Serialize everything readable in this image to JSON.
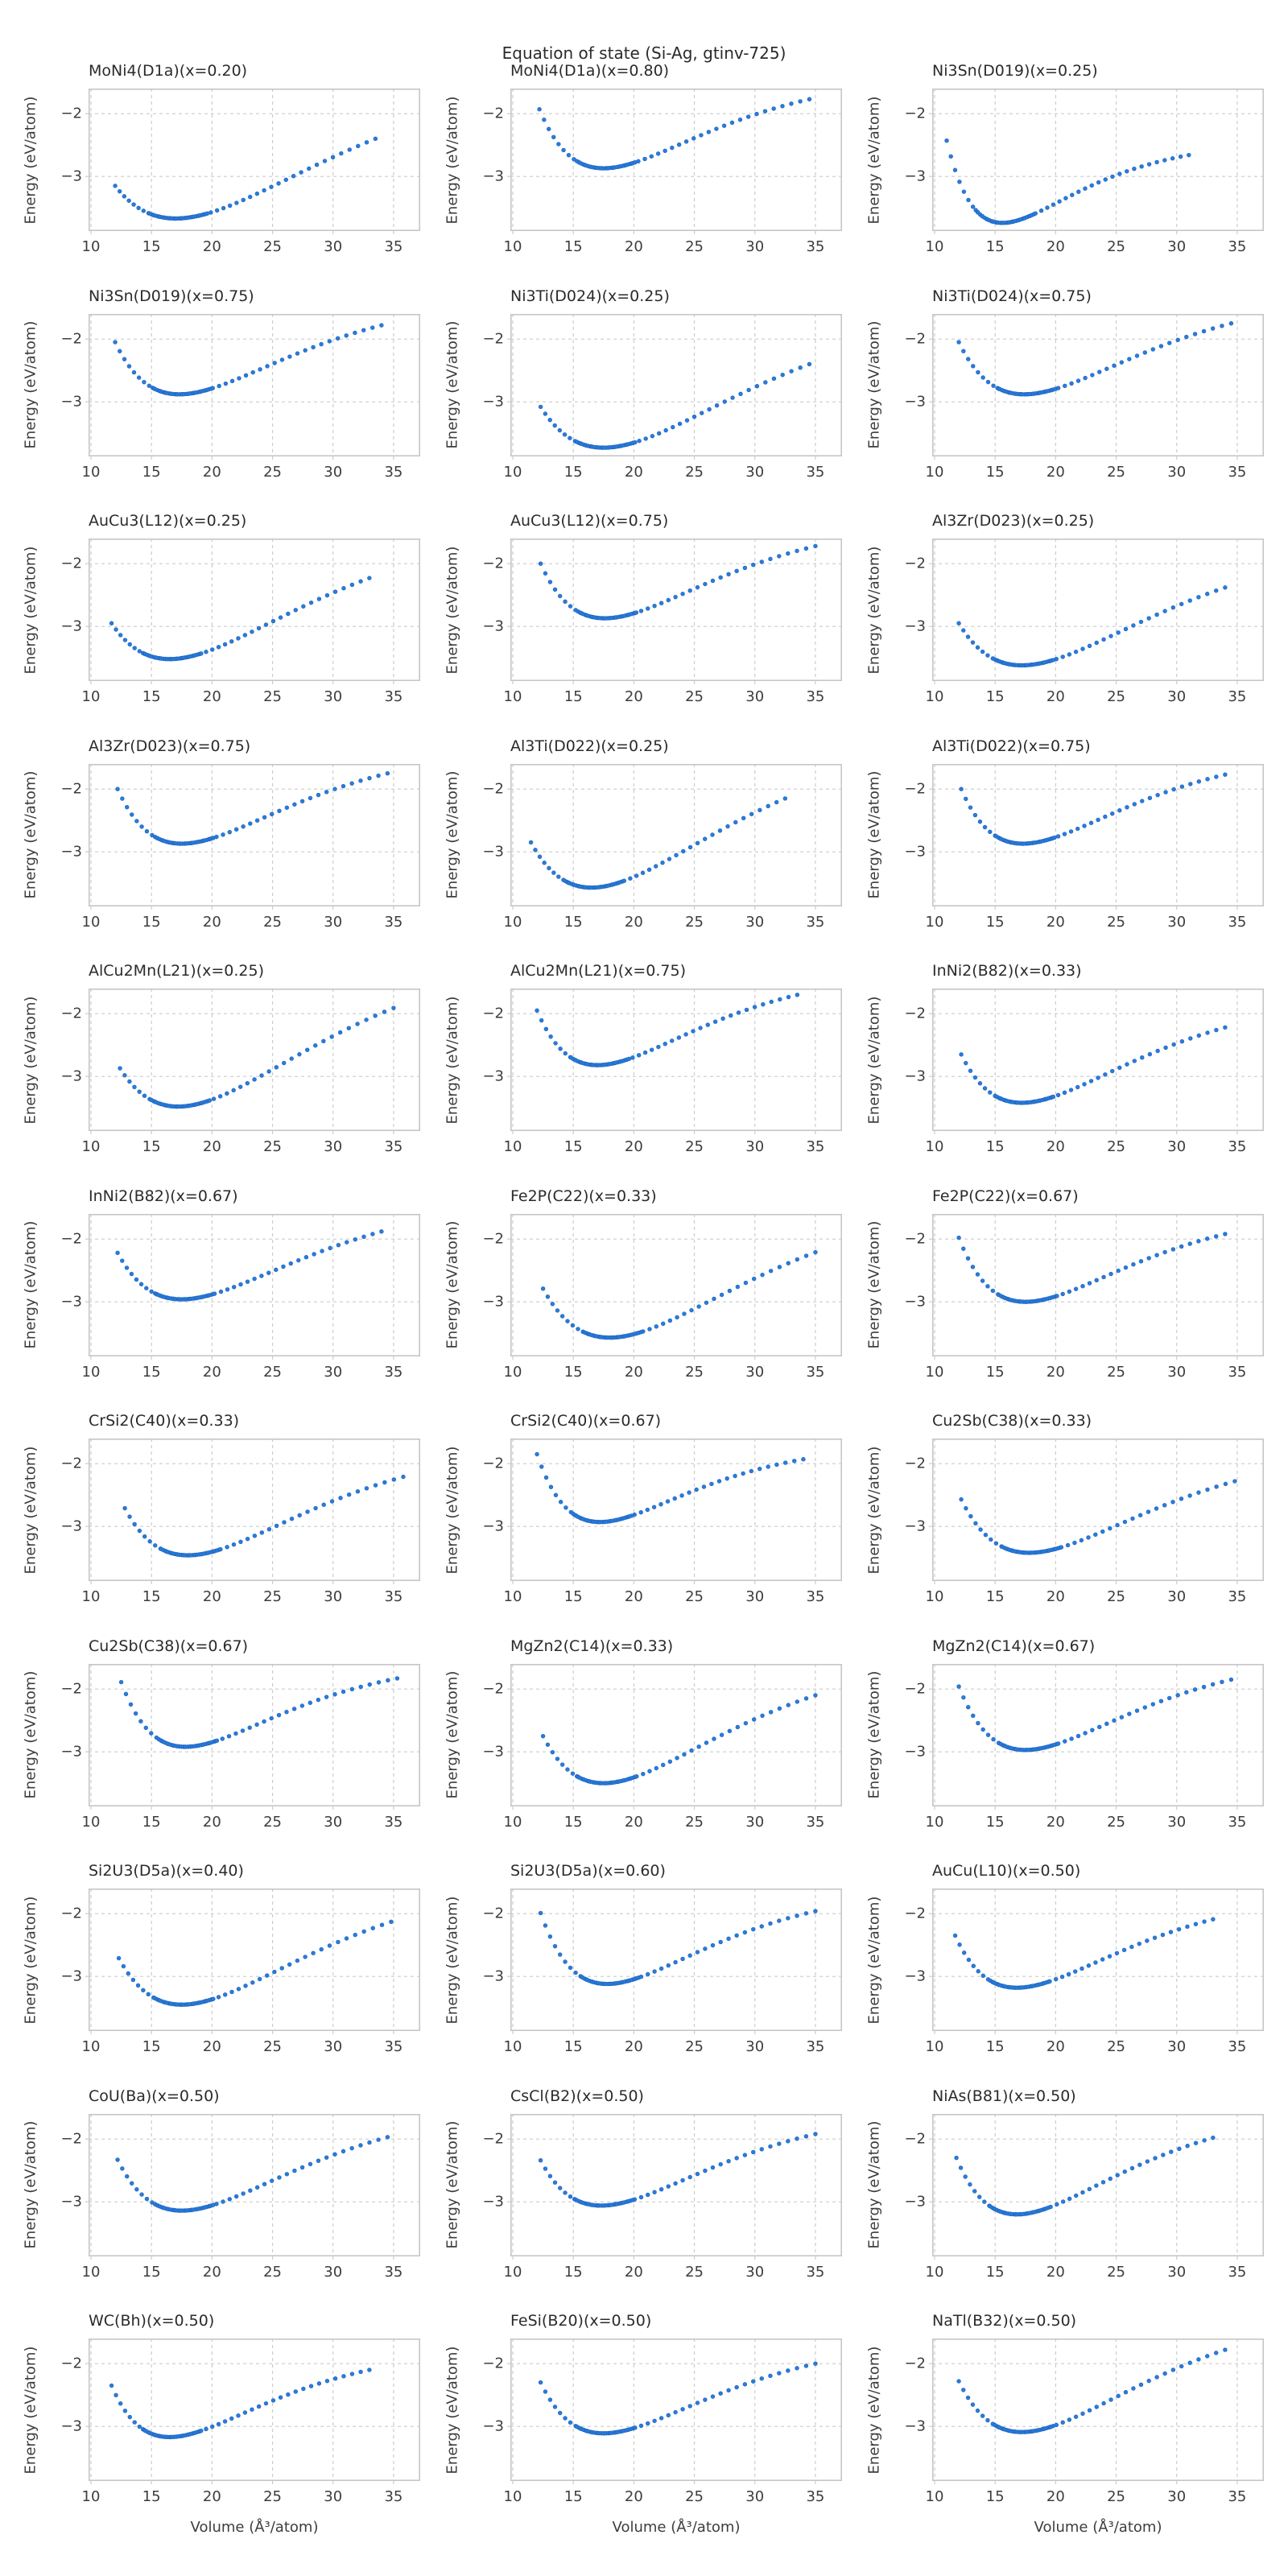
{
  "figure": {
    "suptitle": "Equation of state (Si-Ag, gtinv-725)",
    "colors": {
      "marker": "#2b7cd9",
      "marker_edge": "#1b63c0",
      "grid": "#cccccc",
      "axes_border": "#c6c6c6",
      "title_text": "#2b2b2b",
      "tick_text": "#3d3d3d"
    }
  },
  "chart_data": {
    "type": "scatter",
    "marker": "circle-dot",
    "grid": true,
    "grid_style": "dashed",
    "legend": false,
    "layout": {
      "rows": 11,
      "cols": 3
    },
    "xlabel": "Volume (Å³/atom)",
    "ylabel": "Energy (eV/atom)",
    "xlim": [
      9.8,
      37.2
    ],
    "ylim": [
      -3.87,
      -1.6
    ],
    "xticks": [
      10,
      15,
      20,
      25,
      30,
      35
    ],
    "yticks": [
      -2,
      -3
    ],
    "series_note": "Each subplot: energy-volume scatter curve; eos gives start point (v_start,e_start), minimum (v_min,e_min) and end point (v_end,e_end) in (Å³/atom, eV/atom), read from the plot.",
    "subplots": [
      {
        "title": "MoNi4(D1a)(x=0.20)",
        "eos": {
          "v_start": 12.0,
          "e_start": -3.15,
          "v_min": 17.0,
          "e_min": -3.67,
          "v_end": 33.5,
          "e_end": -2.4
        }
      },
      {
        "title": "MoNi4(D1a)(x=0.80)",
        "eos": {
          "v_start": 12.2,
          "e_start": -1.93,
          "v_min": 17.5,
          "e_min": -2.87,
          "v_end": 34.5,
          "e_end": -1.77
        }
      },
      {
        "title": "Ni3Sn(D019)(x=0.25)",
        "eos": {
          "v_start": 11.0,
          "e_start": -2.43,
          "v_min": 15.6,
          "e_min": -3.74,
          "v_end": 31.0,
          "e_end": -2.66
        }
      },
      {
        "title": "Ni3Sn(D019)(x=0.75)",
        "eos": {
          "v_start": 12.0,
          "e_start": -2.05,
          "v_min": 17.3,
          "e_min": -2.88,
          "v_end": 34.0,
          "e_end": -1.78
        }
      },
      {
        "title": "Ni3Ti(D024)(x=0.25)",
        "eos": {
          "v_start": 12.3,
          "e_start": -3.08,
          "v_min": 17.5,
          "e_min": -3.73,
          "v_end": 34.5,
          "e_end": -2.4
        }
      },
      {
        "title": "Ni3Ti(D024)(x=0.75)",
        "eos": {
          "v_start": 12.0,
          "e_start": -2.05,
          "v_min": 17.4,
          "e_min": -2.88,
          "v_end": 34.5,
          "e_end": -1.75
        }
      },
      {
        "title": "AuCu3(L12)(x=0.25)",
        "eos": {
          "v_start": 11.7,
          "e_start": -2.95,
          "v_min": 16.5,
          "e_min": -3.52,
          "v_end": 33.0,
          "e_end": -2.23
        }
      },
      {
        "title": "AuCu3(L12)(x=0.75)",
        "eos": {
          "v_start": 12.3,
          "e_start": -2.0,
          "v_min": 17.6,
          "e_min": -2.87,
          "v_end": 35.0,
          "e_end": -1.72
        }
      },
      {
        "title": "Al3Zr(D023)(x=0.25)",
        "eos": {
          "v_start": 12.0,
          "e_start": -2.95,
          "v_min": 17.2,
          "e_min": -3.62,
          "v_end": 34.0,
          "e_end": -2.38
        }
      },
      {
        "title": "Al3Zr(D023)(x=0.75)",
        "eos": {
          "v_start": 12.2,
          "e_start": -2.0,
          "v_min": 17.5,
          "e_min": -2.87,
          "v_end": 34.5,
          "e_end": -1.75
        }
      },
      {
        "title": "Al3Ti(D022)(x=0.25)",
        "eos": {
          "v_start": 11.5,
          "e_start": -2.85,
          "v_min": 16.5,
          "e_min": -3.57,
          "v_end": 32.5,
          "e_end": -2.15
        }
      },
      {
        "title": "Al3Ti(D022)(x=0.75)",
        "eos": {
          "v_start": 12.2,
          "e_start": -2.0,
          "v_min": 17.3,
          "e_min": -2.87,
          "v_end": 34.0,
          "e_end": -1.77
        }
      },
      {
        "title": "AlCu2Mn(L21)(x=0.25)",
        "eos": {
          "v_start": 12.4,
          "e_start": -2.87,
          "v_min": 17.2,
          "e_min": -3.48,
          "v_end": 35.0,
          "e_end": -1.91
        }
      },
      {
        "title": "AlCu2Mn(L21)(x=0.75)",
        "eos": {
          "v_start": 12.0,
          "e_start": -1.95,
          "v_min": 17.0,
          "e_min": -2.82,
          "v_end": 33.5,
          "e_end": -1.7
        }
      },
      {
        "title": "InNi2(B82)(x=0.33)",
        "eos": {
          "v_start": 12.2,
          "e_start": -2.65,
          "v_min": 17.2,
          "e_min": -3.42,
          "v_end": 34.0,
          "e_end": -2.22
        }
      },
      {
        "title": "InNi2(B82)(x=0.67)",
        "eos": {
          "v_start": 12.2,
          "e_start": -2.22,
          "v_min": 17.5,
          "e_min": -2.96,
          "v_end": 34.0,
          "e_end": -1.88
        }
      },
      {
        "title": "Fe2P(C22)(x=0.33)",
        "eos": {
          "v_start": 12.5,
          "e_start": -2.79,
          "v_min": 18.0,
          "e_min": -3.57,
          "v_end": 35.0,
          "e_end": -2.21
        }
      },
      {
        "title": "Fe2P(C22)(x=0.67)",
        "eos": {
          "v_start": 12.0,
          "e_start": -1.98,
          "v_min": 17.5,
          "e_min": -3.0,
          "v_end": 34.0,
          "e_end": -1.92
        }
      },
      {
        "title": "CrSi2(C40)(x=0.33)",
        "eos": {
          "v_start": 12.8,
          "e_start": -2.71,
          "v_min": 18.0,
          "e_min": -3.46,
          "v_end": 35.8,
          "e_end": -2.21
        }
      },
      {
        "title": "CrSi2(C40)(x=0.67)",
        "eos": {
          "v_start": 12.0,
          "e_start": -1.85,
          "v_min": 17.2,
          "e_min": -2.93,
          "v_end": 34.0,
          "e_end": -1.93
        }
      },
      {
        "title": "Cu2Sb(C38)(x=0.33)",
        "eos": {
          "v_start": 12.2,
          "e_start": -2.57,
          "v_min": 17.8,
          "e_min": -3.42,
          "v_end": 34.8,
          "e_end": -2.28
        }
      },
      {
        "title": "Cu2Sb(C38)(x=0.67)",
        "eos": {
          "v_start": 12.5,
          "e_start": -1.89,
          "v_min": 17.8,
          "e_min": -2.92,
          "v_end": 35.3,
          "e_end": -1.83
        }
      },
      {
        "title": "MgZn2(C14)(x=0.33)",
        "eos": {
          "v_start": 12.5,
          "e_start": -2.75,
          "v_min": 17.5,
          "e_min": -3.5,
          "v_end": 35.0,
          "e_end": -2.1
        }
      },
      {
        "title": "MgZn2(C14)(x=0.67)",
        "eos": {
          "v_start": 12.0,
          "e_start": -1.96,
          "v_min": 17.5,
          "e_min": -2.97,
          "v_end": 34.5,
          "e_end": -1.85
        }
      },
      {
        "title": "Si2U3(D5a)(x=0.40)",
        "eos": {
          "v_start": 12.3,
          "e_start": -2.71,
          "v_min": 17.5,
          "e_min": -3.45,
          "v_end": 34.8,
          "e_end": -2.13
        }
      },
      {
        "title": "Si2U3(D5a)(x=0.60)",
        "eos": {
          "v_start": 12.3,
          "e_start": -1.99,
          "v_min": 17.8,
          "e_min": -3.12,
          "v_end": 35.0,
          "e_end": -1.96
        }
      },
      {
        "title": "AuCu(L10)(x=0.50)",
        "eos": {
          "v_start": 11.7,
          "e_start": -2.35,
          "v_min": 16.8,
          "e_min": -3.18,
          "v_end": 33.0,
          "e_end": -2.09
        }
      },
      {
        "title": "CoU(Ba)(x=0.50)",
        "eos": {
          "v_start": 12.2,
          "e_start": -2.33,
          "v_min": 17.5,
          "e_min": -3.14,
          "v_end": 34.5,
          "e_end": -1.97
        }
      },
      {
        "title": "CsCl(B2)(x=0.50)",
        "eos": {
          "v_start": 12.3,
          "e_start": -2.34,
          "v_min": 17.3,
          "e_min": -3.06,
          "v_end": 35.0,
          "e_end": -1.92
        }
      },
      {
        "title": "NiAs(B81)(x=0.50)",
        "eos": {
          "v_start": 11.8,
          "e_start": -2.3,
          "v_min": 16.8,
          "e_min": -3.2,
          "v_end": 33.0,
          "e_end": -1.98
        }
      },
      {
        "title": "WC(Bh)(x=0.50)",
        "eos": {
          "v_start": 11.7,
          "e_start": -2.35,
          "v_min": 16.5,
          "e_min": -3.17,
          "v_end": 33.0,
          "e_end": -2.1
        }
      },
      {
        "title": "FeSi(B20)(x=0.50)",
        "eos": {
          "v_start": 12.3,
          "e_start": -2.3,
          "v_min": 17.5,
          "e_min": -3.11,
          "v_end": 35.0,
          "e_end": -2.0
        }
      },
      {
        "title": "NaTl(B32)(x=0.50)",
        "eos": {
          "v_start": 12.0,
          "e_start": -2.28,
          "v_min": 17.2,
          "e_min": -3.09,
          "v_end": 34.0,
          "e_end": -1.78
        }
      }
    ]
  }
}
